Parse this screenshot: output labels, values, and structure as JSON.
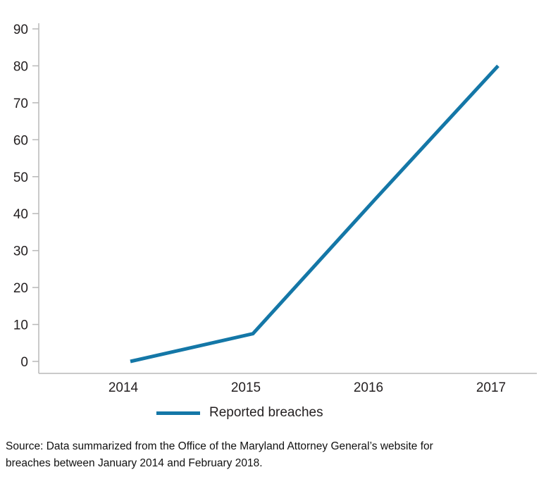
{
  "chart_data": {
    "type": "line",
    "title": "",
    "xlabel": "",
    "ylabel": "",
    "x": [
      "2014",
      "2015",
      "2016",
      "2017"
    ],
    "series": [
      {
        "name": "Reported breaches",
        "values": [
          0,
          7.5,
          44,
          80
        ]
      }
    ],
    "ylim": [
      0,
      90
    ],
    "yticks": [
      0,
      10,
      20,
      30,
      40,
      50,
      60,
      70,
      80,
      90
    ],
    "grid": false,
    "legend_position": "bottom",
    "line_color": "#1477a7",
    "axis_color": "#b9b9b9",
    "text_color": "#231f20"
  },
  "legend": {
    "label": "Reported breaches"
  },
  "source_note": "Source: Data summarized from the Office of the Maryland Attorney General’s website for\nbreaches between January 2014 and February 2018."
}
